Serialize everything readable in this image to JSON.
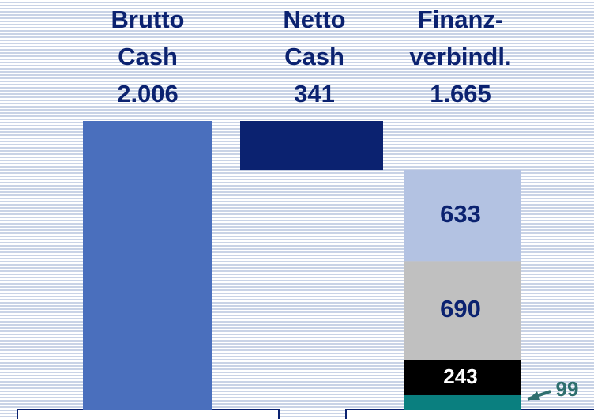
{
  "chart_data": {
    "type": "waterfall",
    "categories": [
      [
        "Brutto",
        "Cash"
      ],
      [
        "Netto",
        "Cash"
      ],
      [
        "Finanz-",
        "verbindl."
      ]
    ],
    "values": [
      2006,
      341,
      1665
    ],
    "value_labels": [
      "2.006",
      "341",
      "1.665"
    ],
    "colors": [
      "#4a6fbd",
      "#0b2270",
      null
    ],
    "segments": {
      "values": [
        99,
        243,
        690,
        633
      ],
      "colors": [
        "#0a7f7f",
        "#000000",
        "#c0c0c0",
        "#b3c2e2"
      ]
    }
  }
}
